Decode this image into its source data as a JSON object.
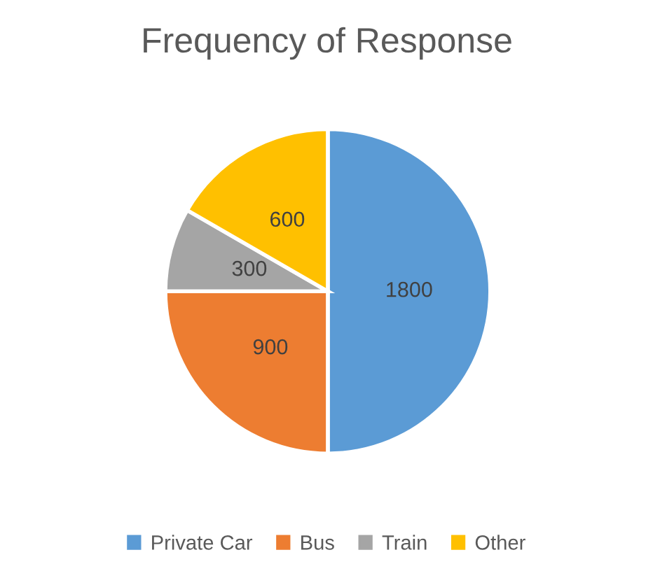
{
  "chart_data": {
    "type": "pie",
    "title": "Frequency of Response",
    "categories": [
      "Private Car",
      "Bus",
      "Train",
      "Other"
    ],
    "values": [
      1800,
      900,
      300,
      600
    ],
    "colors": [
      "#5b9bd5",
      "#ed7d31",
      "#a5a5a5",
      "#ffc000"
    ],
    "data_labels": true,
    "legend": "bottom"
  }
}
